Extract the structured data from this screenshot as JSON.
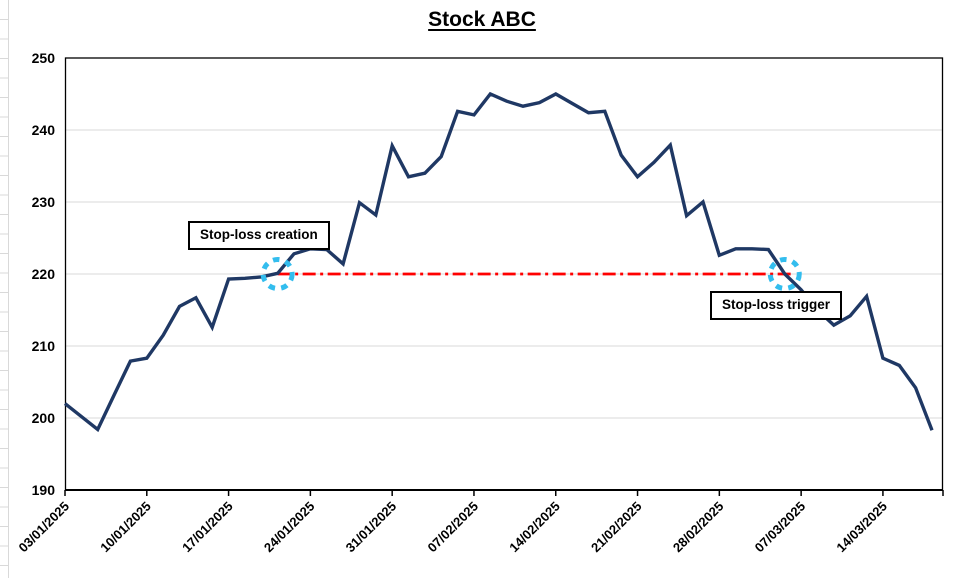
{
  "chart_data": {
    "type": "line",
    "title": "Stock ABC",
    "xlabel": "",
    "ylabel": "",
    "ylim": [
      190,
      250
    ],
    "yticks": [
      190,
      200,
      210,
      220,
      230,
      240,
      250
    ],
    "xtick_every": 5,
    "grid": "horizontal",
    "legend": "none",
    "x": [
      "03/01/2025",
      "06/01/2025",
      "07/01/2025",
      "08/01/2025",
      "09/01/2025",
      "10/01/2025",
      "13/01/2025",
      "14/01/2025",
      "15/01/2025",
      "16/01/2025",
      "17/01/2025",
      "20/01/2025",
      "21/01/2025",
      "22/01/2025",
      "23/01/2025",
      "24/01/2025",
      "27/01/2025",
      "28/01/2025",
      "29/01/2025",
      "30/01/2025",
      "31/01/2025",
      "03/02/2025",
      "04/02/2025",
      "05/02/2025",
      "06/02/2025",
      "07/02/2025",
      "10/02/2025",
      "11/02/2025",
      "12/02/2025",
      "13/02/2025",
      "14/02/2025",
      "17/02/2025",
      "18/02/2025",
      "19/02/2025",
      "20/02/2025",
      "21/02/2025",
      "24/02/2025",
      "25/02/2025",
      "26/02/2025",
      "27/02/2025",
      "28/02/2025",
      "03/03/2025",
      "04/03/2025",
      "05/03/2025",
      "06/03/2025",
      "07/03/2025",
      "10/03/2025",
      "11/03/2025",
      "12/03/2025",
      "13/03/2025",
      "14/03/2025",
      "17/03/2025",
      "18/03/2025",
      "19/03/2025"
    ],
    "series": [
      {
        "name": "Stock ABC",
        "color": "#1f3864",
        "values": [
          202.0,
          200.2,
          198.4,
          203.2,
          207.9,
          208.3,
          211.5,
          215.5,
          216.7,
          212.6,
          219.3,
          219.4,
          219.6,
          220.1,
          222.8,
          223.5,
          223.4,
          221.4,
          229.9,
          228.2,
          237.8,
          233.5,
          234.0,
          236.3,
          242.6,
          242.1,
          245.0,
          244.0,
          243.3,
          243.8,
          245.0,
          243.7,
          242.4,
          242.6,
          236.5,
          233.5,
          235.5,
          237.9,
          228.1,
          230.0,
          222.6,
          223.5,
          223.5,
          223.4,
          220.0,
          217.8,
          215.0,
          212.9,
          214.2,
          216.9,
          208.3,
          207.3,
          204.2,
          198.3
        ]
      }
    ],
    "stop_loss": {
      "level": 220,
      "line_color": "#ff0000",
      "line_style": "dash-dot",
      "highlight_circle_color": "#33bdee",
      "creation": {
        "label": "Stop-loss creation",
        "date": "22/01/2025",
        "index": 13
      },
      "trigger": {
        "label": "Stop-loss trigger",
        "date": "06/03/2025",
        "index": 44
      }
    },
    "colors": {
      "gridline": "#d9d9d9",
      "axis": "#000000",
      "text": "#000000",
      "background": "#ffffff"
    }
  }
}
